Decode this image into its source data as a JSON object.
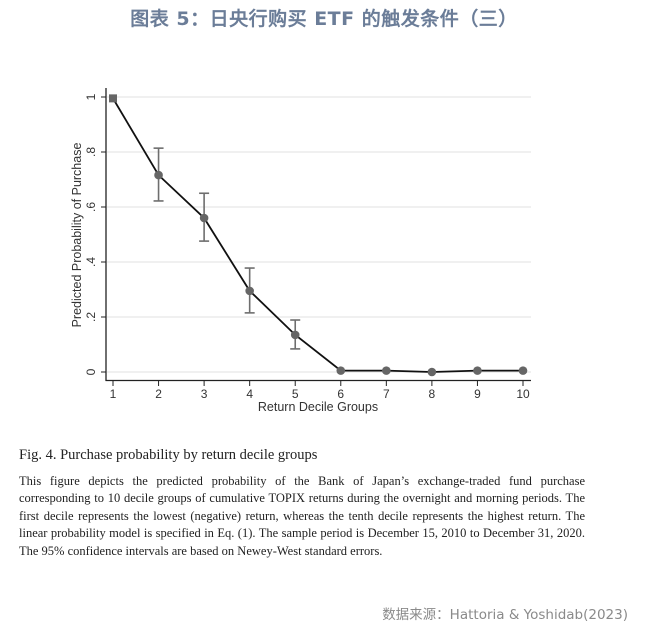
{
  "header": {
    "title": "图表 5：日央行购买 ETF 的触发条件（三）"
  },
  "chart_data": {
    "type": "line",
    "title": "",
    "xlabel": "Return Decile Groups",
    "ylabel": "Predicted Probability of Purchase",
    "x": [
      1,
      2,
      3,
      4,
      5,
      6,
      7,
      8,
      9,
      10
    ],
    "xtick_labels": [
      "1",
      "2",
      "3",
      "4",
      "5",
      "6",
      "7",
      "8",
      "9",
      "10"
    ],
    "ytick_values": [
      0,
      0.2,
      0.4,
      0.6,
      0.8,
      1
    ],
    "ytick_labels": [
      "0",
      ".2",
      ".4",
      ".6",
      ".8",
      "1"
    ],
    "ylim": [
      0,
      1
    ],
    "xlim": [
      1,
      10
    ],
    "grid": true,
    "series": [
      {
        "name": "Predicted probability",
        "values": [
          0.995,
          0.716,
          0.56,
          0.295,
          0.135,
          0.005,
          0.005,
          0.0,
          0.005,
          0.005
        ],
        "ci_lower": [
          null,
          0.622,
          0.476,
          0.215,
          0.084,
          null,
          null,
          null,
          null,
          null
        ],
        "ci_upper": [
          null,
          0.814,
          0.65,
          0.378,
          0.189,
          null,
          null,
          null,
          null,
          null
        ]
      }
    ],
    "annotations": "Error bars show 95% confidence intervals (Newey-West)",
    "colors": {
      "line": "#111111",
      "marker": "#666666",
      "errorbar": "#6e6e6e",
      "grid": "#e6e6e6",
      "axis": "#222222"
    }
  },
  "caption": {
    "figure_title": "Fig. 4. Purchase probability by return decile groups",
    "description": "This figure depicts the predicted probability of the Bank of Japan’s exchange-traded fund purchase corresponding to 10 decile groups of cumulative TOPIX returns during the overnight and morning periods. The first decile represents the lowest (negative) return, whereas the tenth decile represents the highest return. The linear probability model is specified in Eq. (1). The sample period is December 15, 2010 to December 31, 2020. The 95% confidence intervals are based on Newey-West standard errors."
  },
  "footer": {
    "source": "数据来源：Hattoria & Yoshidab(2023)"
  }
}
